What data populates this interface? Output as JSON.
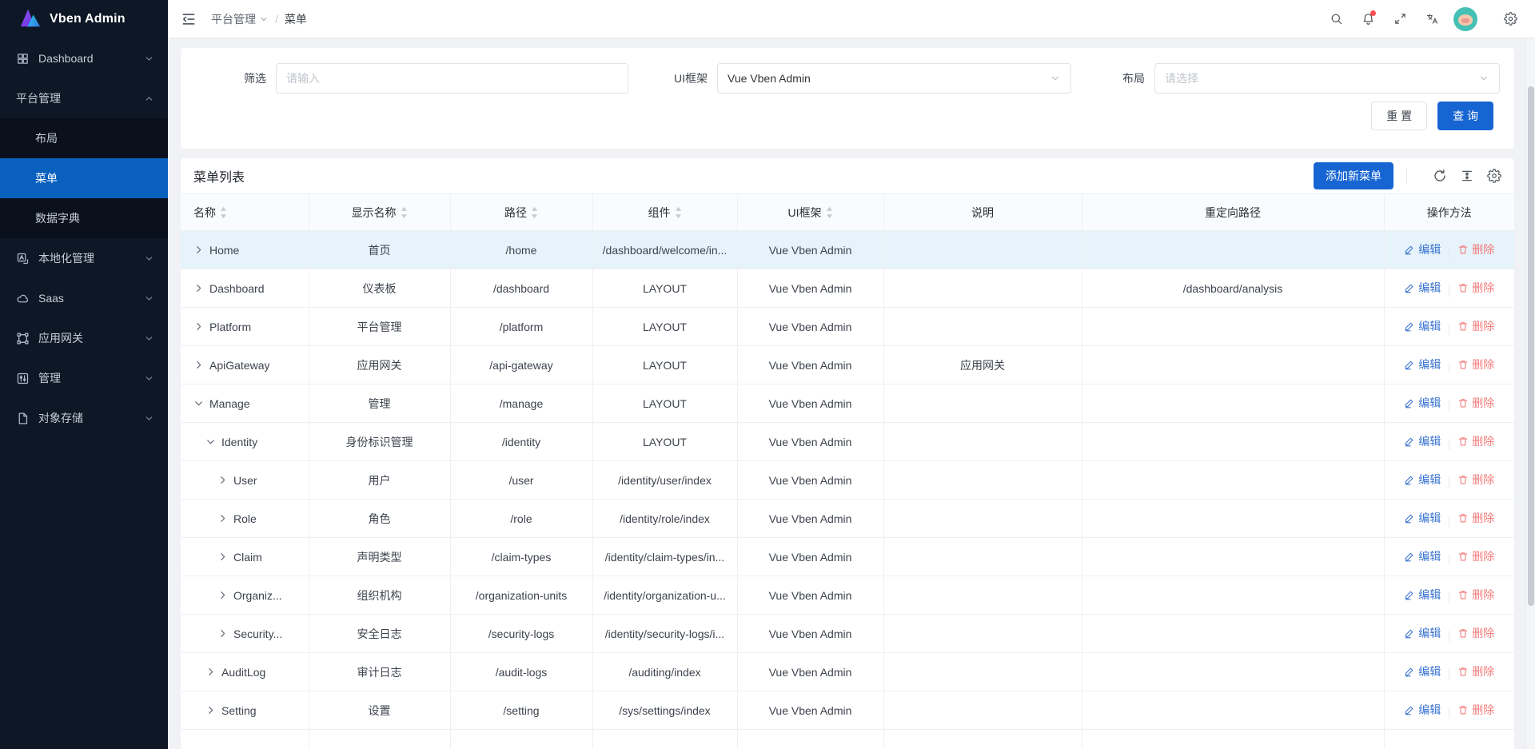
{
  "colors": {
    "accent": "#1765d2",
    "sidebar_active": "#0960bd",
    "link_blue": "#3873d0",
    "danger": "#f37b7b",
    "row_highlight": "#e6f3fb",
    "notification_dot": "#ff4d4f",
    "avatar_bg": "#45c0b4"
  },
  "sidebar": {
    "logo_text": "Vben Admin",
    "items": [
      {
        "id": "dashboard",
        "label": "Dashboard",
        "icon": "grid-icon",
        "expanded": false
      },
      {
        "id": "platform",
        "label": "平台管理",
        "icon": null,
        "expanded": true,
        "children": [
          {
            "id": "layout",
            "label": "布局",
            "active": false
          },
          {
            "id": "menu",
            "label": "菜单",
            "active": true
          },
          {
            "id": "data-dictionary",
            "label": "数据字典",
            "active": false
          }
        ]
      },
      {
        "id": "localization",
        "label": "本地化管理",
        "icon": "localization-icon",
        "expanded": false
      },
      {
        "id": "saas",
        "label": "Saas",
        "icon": "cloud-icon",
        "expanded": false
      },
      {
        "id": "api-gateway",
        "label": "应用网关",
        "icon": "gateway-icon",
        "expanded": false
      },
      {
        "id": "manage",
        "label": "管理",
        "icon": "sliders-icon",
        "expanded": false
      },
      {
        "id": "object-storage",
        "label": "对象存储",
        "icon": "file-icon",
        "expanded": false
      }
    ]
  },
  "header": {
    "breadcrumb": {
      "section": "平台管理",
      "separator": "/",
      "current": "菜单"
    },
    "right_icons": [
      "search-icon",
      "bell-icon",
      "fullscreen-icon",
      "translate-icon",
      "avatar",
      "settings-icon"
    ]
  },
  "filter": {
    "filter_label": "筛选",
    "filter_placeholder": "请输入",
    "framework_label": "UI框架",
    "framework_value": "Vue Vben Admin",
    "layout_label": "布局",
    "layout_placeholder": "请选择",
    "reset_label": "重 置",
    "search_label": "查 询"
  },
  "table": {
    "title": "菜单列表",
    "add_label": "添加新菜单",
    "edit_label": "编辑",
    "delete_label": "删除",
    "columns": [
      {
        "id": "name",
        "label": "名称",
        "sortable": true
      },
      {
        "id": "display",
        "label": "显示名称",
        "sortable": true
      },
      {
        "id": "path",
        "label": "路径",
        "sortable": true
      },
      {
        "id": "component",
        "label": "组件",
        "sortable": true
      },
      {
        "id": "framework",
        "label": "UI框架",
        "sortable": true
      },
      {
        "id": "description",
        "label": "说明",
        "sortable": false
      },
      {
        "id": "redirect",
        "label": "重定向路径",
        "sortable": false
      },
      {
        "id": "actions",
        "label": "操作方法",
        "sortable": false
      }
    ],
    "rows": [
      {
        "name": "Home",
        "level": 0,
        "expanded": false,
        "display": "首页",
        "path": "/home",
        "component": "/dashboard/welcome/in...",
        "framework": "Vue Vben Admin",
        "description": "",
        "redirect": "",
        "highlighted": true
      },
      {
        "name": "Dashboard",
        "level": 0,
        "expanded": false,
        "display": "仪表板",
        "path": "/dashboard",
        "component": "LAYOUT",
        "framework": "Vue Vben Admin",
        "description": "",
        "redirect": "/dashboard/analysis",
        "highlighted": false
      },
      {
        "name": "Platform",
        "level": 0,
        "expanded": false,
        "display": "平台管理",
        "path": "/platform",
        "component": "LAYOUT",
        "framework": "Vue Vben Admin",
        "description": "",
        "redirect": "",
        "highlighted": false
      },
      {
        "name": "ApiGateway",
        "level": 0,
        "expanded": false,
        "display": "应用网关",
        "path": "/api-gateway",
        "component": "LAYOUT",
        "framework": "Vue Vben Admin",
        "description": "应用网关",
        "redirect": "",
        "highlighted": false
      },
      {
        "name": "Manage",
        "level": 0,
        "expanded": true,
        "display": "管理",
        "path": "/manage",
        "component": "LAYOUT",
        "framework": "Vue Vben Admin",
        "description": "",
        "redirect": "",
        "highlighted": false
      },
      {
        "name": "Identity",
        "level": 1,
        "expanded": true,
        "display": "身份标识管理",
        "path": "/identity",
        "component": "LAYOUT",
        "framework": "Vue Vben Admin",
        "description": "",
        "redirect": "",
        "highlighted": false
      },
      {
        "name": "User",
        "level": 2,
        "expanded": false,
        "display": "用户",
        "path": "/user",
        "component": "/identity/user/index",
        "framework": "Vue Vben Admin",
        "description": "",
        "redirect": "",
        "highlighted": false
      },
      {
        "name": "Role",
        "level": 2,
        "expanded": false,
        "display": "角色",
        "path": "/role",
        "component": "/identity/role/index",
        "framework": "Vue Vben Admin",
        "description": "",
        "redirect": "",
        "highlighted": false
      },
      {
        "name": "Claim",
        "level": 2,
        "expanded": false,
        "display": "声明类型",
        "path": "/claim-types",
        "component": "/identity/claim-types/in...",
        "framework": "Vue Vben Admin",
        "description": "",
        "redirect": "",
        "highlighted": false
      },
      {
        "name": "Organiz...",
        "level": 2,
        "expanded": false,
        "display": "组织机构",
        "path": "/organization-units",
        "component": "/identity/organization-u...",
        "framework": "Vue Vben Admin",
        "description": "",
        "redirect": "",
        "highlighted": false
      },
      {
        "name": "Security...",
        "level": 2,
        "expanded": false,
        "display": "安全日志",
        "path": "/security-logs",
        "component": "/identity/security-logs/i...",
        "framework": "Vue Vben Admin",
        "description": "",
        "redirect": "",
        "highlighted": false
      },
      {
        "name": "AuditLog",
        "level": 1,
        "expanded": false,
        "display": "审计日志",
        "path": "/audit-logs",
        "component": "/auditing/index",
        "framework": "Vue Vben Admin",
        "description": "",
        "redirect": "",
        "highlighted": false
      },
      {
        "name": "Setting",
        "level": 1,
        "expanded": false,
        "display": "设置",
        "path": "/setting",
        "component": "/sys/settings/index",
        "framework": "Vue Vben Admin",
        "description": "",
        "redirect": "",
        "highlighted": false
      }
    ]
  }
}
